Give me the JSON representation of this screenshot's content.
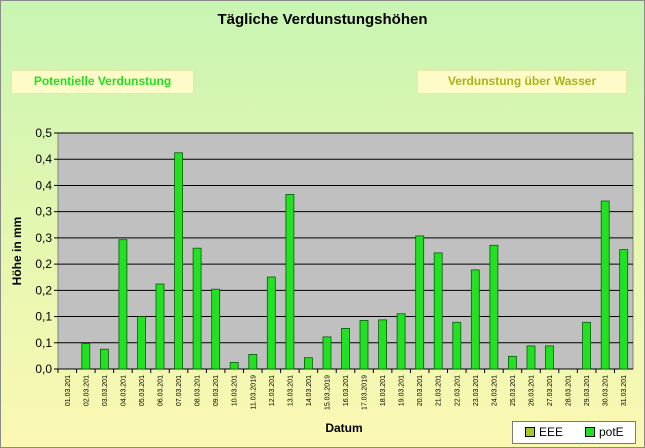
{
  "colors": {
    "plot_bg": "#c0c0c0",
    "bar_fill": "#22e022",
    "bar_stroke": "#0a5a0a",
    "eee_color": "#a3c928",
    "pote_color": "#22e022"
  },
  "labels": {
    "left_box": "Potentielle Verdunstung",
    "right_box": "Verdunstung über Wasser"
  },
  "chart_data": {
    "type": "bar",
    "title": "Tägliche Verdunstungshöhen",
    "xlabel": "Datum",
    "ylabel": "Höhe in mm",
    "ylim": [
      0,
      0.5
    ],
    "y_tick_labels": [
      "0,0",
      "0,1",
      "0,1",
      "0,2",
      "0,2",
      "0,3",
      "0,3",
      "0,4",
      "0,4",
      "0,5"
    ],
    "grid": true,
    "legend_position": "bottom-right",
    "legend": [
      "EEE",
      "potE"
    ],
    "categories": [
      "01.03.201",
      "02.03.201",
      "03.03.201",
      "04.03.201",
      "05.03.201",
      "06.03.201",
      "07.03.201",
      "08.03.201",
      "09.03.201",
      "10.03.201",
      "11.03.2019",
      "12.03.201",
      "13.03.201",
      "14.03.201",
      "15.03.2019",
      "16.03.201",
      "17.03.2019",
      "18.03.201",
      "19.03.201",
      "20.03.201",
      "21.03.201",
      "22.03.201",
      "23.03.201",
      "24.03.201",
      "25.03.201",
      "26.03.201",
      "27.03.201",
      "28.03.201",
      "29.03.201",
      "30.03.201",
      "31.03.201"
    ],
    "series": [
      {
        "name": "EEE",
        "values": [
          0,
          0,
          0,
          0,
          0,
          0,
          0,
          0,
          0,
          0,
          0,
          0,
          0,
          0,
          0,
          0,
          0,
          0,
          0,
          0,
          0,
          0,
          0,
          0,
          0,
          0,
          0,
          0,
          0,
          0,
          0
        ]
      },
      {
        "name": "potE",
        "values": [
          0,
          0.054,
          0.042,
          0.274,
          0.111,
          0.18,
          0.458,
          0.256,
          0.169,
          0.014,
          0.031,
          0.195,
          0.37,
          0.024,
          0.068,
          0.086,
          0.103,
          0.104,
          0.117,
          0.282,
          0.246,
          0.099,
          0.21,
          0.262,
          0.027,
          0.049,
          0.049,
          0,
          0.099,
          0.356,
          0.253
        ]
      }
    ]
  }
}
